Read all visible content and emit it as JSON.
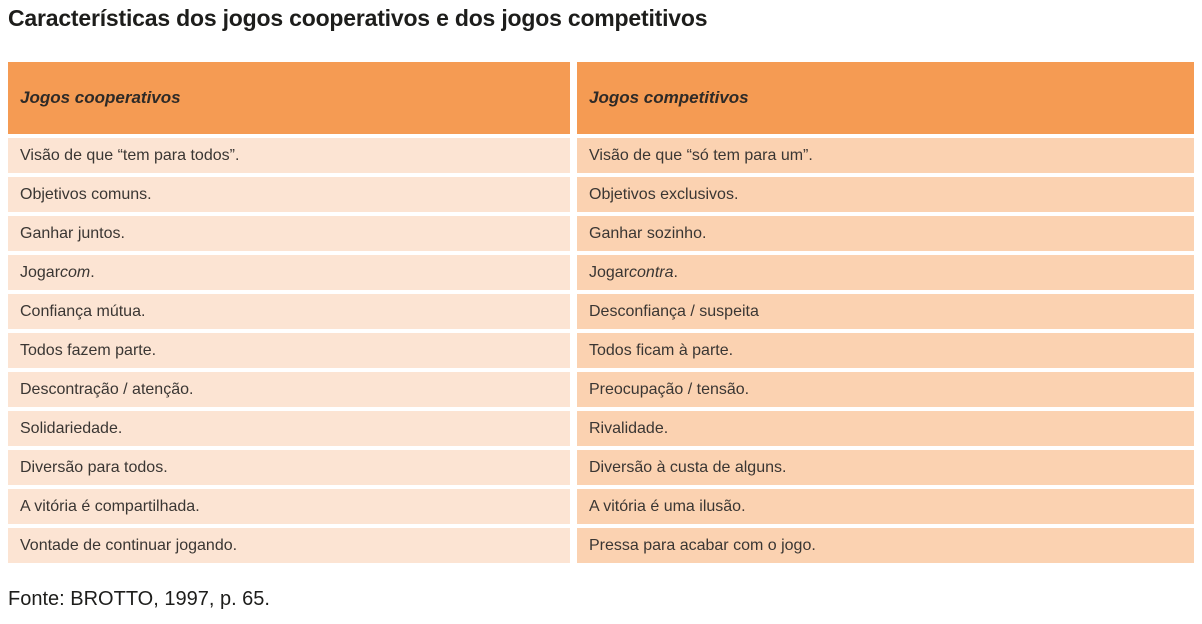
{
  "page": {
    "title": "Características dos jogos cooperativos e dos jogos competitivos",
    "source": "Fonte: BROTTO, 1997, p. 65."
  },
  "colors": {
    "header_bg": "#f59b53",
    "row_left_bg": "#fce4d3",
    "row_right_bg": "#fbd2b1",
    "title_color": "#1d1d1b",
    "text_color": "#3a3633"
  },
  "table": {
    "columns": [
      {
        "header": "Jogos cooperativos"
      },
      {
        "header": "Jogos competitivos"
      }
    ],
    "rows": [
      [
        "Visão de que “tem para todos”.",
        "Visão de que “só tem para um”."
      ],
      [
        "Objetivos comuns.",
        "Objetivos exclusivos."
      ],
      [
        "Ganhar juntos.",
        "Ganhar sozinho."
      ],
      [
        "Jogar *com*.",
        "Jogar *contra*."
      ],
      [
        "Confiança mútua.",
        "Desconfiança / suspeita"
      ],
      [
        "Todos fazem parte.",
        "Todos ficam à parte."
      ],
      [
        "Descontração / atenção.",
        "Preocupação / tensão."
      ],
      [
        "Solidariedade.",
        "Rivalidade."
      ],
      [
        "Diversão para todos.",
        "Diversão à custa de alguns."
      ],
      [
        "A vitória é compartilhada.",
        "A vitória é uma ilusão."
      ],
      [
        "Vontade de continuar jogando.",
        "Pressa para acabar com o jogo."
      ]
    ]
  }
}
